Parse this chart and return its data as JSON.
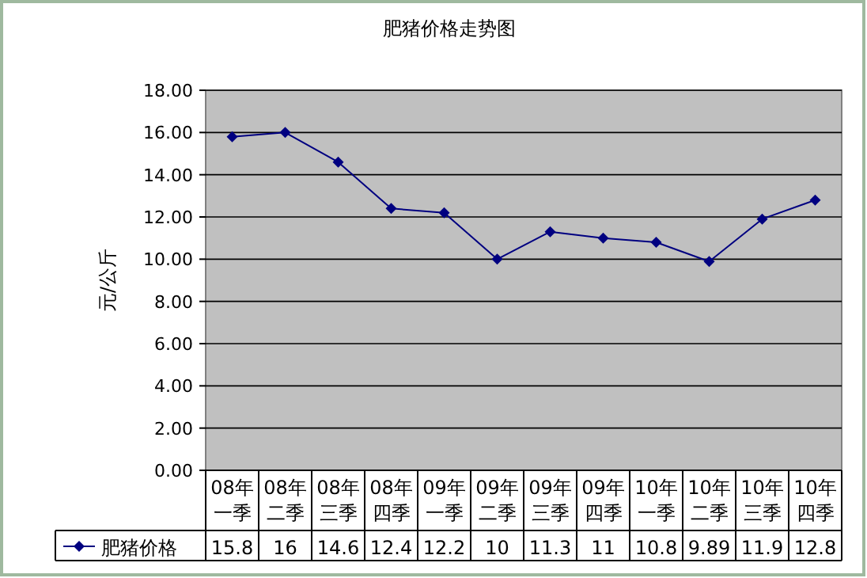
{
  "chart_data": {
    "type": "line",
    "title": "肥猪价格走势图",
    "ylabel": "元/公斤",
    "categories": [
      "08年一季",
      "08年二季",
      "08年三季",
      "08年四季",
      "09年一季",
      "09年二季",
      "09年三季",
      "09年四季",
      "10年一季",
      "10年二季",
      "10年三季",
      "10年四季"
    ],
    "series": [
      {
        "name": "肥猪价格",
        "color": "#000080",
        "values": [
          15.8,
          16,
          14.6,
          12.4,
          12.2,
          10,
          11.3,
          11,
          10.8,
          9.89,
          11.9,
          12.8
        ]
      }
    ],
    "ylim": [
      0,
      18
    ],
    "yticks": [
      {
        "value": 0,
        "label": "0.00"
      },
      {
        "value": 2,
        "label": "2.00"
      },
      {
        "value": 4,
        "label": "4.00"
      },
      {
        "value": 6,
        "label": "6.00"
      },
      {
        "value": 8,
        "label": "8.00"
      },
      {
        "value": 10,
        "label": "10.00"
      },
      {
        "value": 12,
        "label": "12.00"
      },
      {
        "value": 14,
        "label": "14.00"
      },
      {
        "value": 16,
        "label": "16.00"
      },
      {
        "value": 18,
        "label": "18.00"
      }
    ],
    "grid": "y",
    "marker": "diamond",
    "line_style": "solid",
    "data_labels": true,
    "legend": "bottom"
  }
}
